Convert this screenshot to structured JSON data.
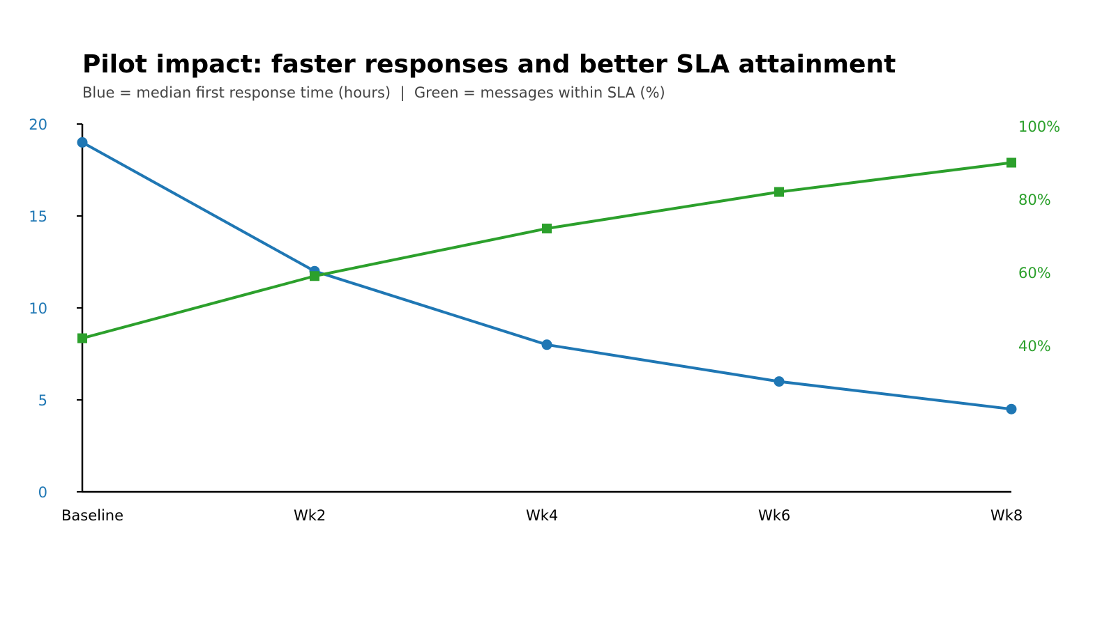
{
  "chart_data": {
    "type": "line",
    "title": "Pilot impact: faster responses and better SLA attainment",
    "subtitle": "Blue = median first response time (hours)  |  Green = messages within SLA (%)",
    "categories": [
      "Baseline",
      "Wk2",
      "Wk4",
      "Wk6",
      "Wk8"
    ],
    "series": [
      {
        "axis": "left",
        "color": "#1f77b4",
        "marker": "circle",
        "values": [
          19,
          12,
          8,
          6,
          4.5
        ]
      },
      {
        "axis": "right",
        "color": "#2ca02c",
        "marker": "square",
        "values": [
          42,
          59,
          72,
          82,
          90
        ]
      }
    ],
    "left_axis": {
      "ylim": [
        0,
        20
      ],
      "ticks": [
        "0",
        "5",
        "10",
        "15",
        "20"
      ],
      "tick_values": [
        0,
        5,
        10,
        15,
        20
      ],
      "color": "#1f77b4"
    },
    "right_axis": {
      "ylim": [
        0,
        100
      ],
      "ticks": [
        "40%",
        "60%",
        "80%",
        "100%"
      ],
      "tick_values": [
        40,
        60,
        80,
        100
      ],
      "color": "#2ca02c"
    },
    "grid": false,
    "legend": "none"
  }
}
